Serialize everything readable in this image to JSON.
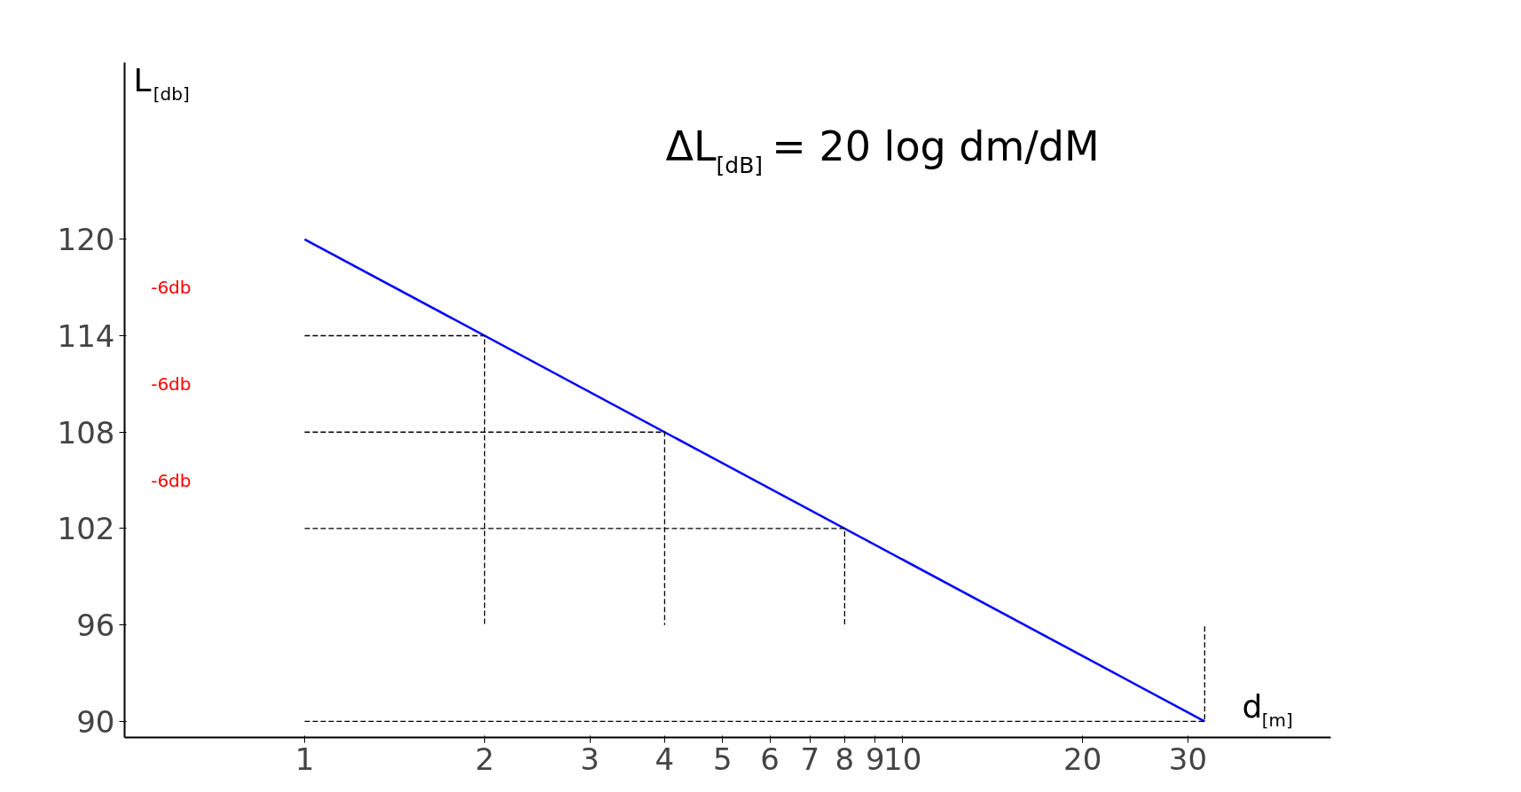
{
  "chart_data": {
    "type": "line",
    "xlabel": "d$_{[m]}$",
    "ylabel": "L$_{[db]}$",
    "log": "x",
    "xlim": [
      0.5,
      52
    ],
    "ylim": [
      89,
      131
    ],
    "xticks": [
      1,
      2,
      3,
      4,
      5,
      6,
      7,
      8,
      9,
      10,
      20,
      30
    ],
    "yticks": [
      90,
      96,
      102,
      108,
      114,
      120
    ],
    "grid": false,
    "marker": "none",
    "series": [
      {
        "color": "#0000ff",
        "x": [
          1,
          32
        ],
        "values": [
          120,
          90
        ],
        "line_style": "solid"
      },
      {
        "color": "#000000",
        "x": [
          1,
          2,
          2
        ],
        "values": [
          114,
          114,
          96
        ],
        "line_style": "dashed"
      },
      {
        "color": "#000000",
        "x": [
          1,
          4,
          4
        ],
        "values": [
          108,
          108,
          96
        ],
        "line_style": "dashed"
      },
      {
        "color": "#000000",
        "x": [
          1,
          8,
          8
        ],
        "values": [
          102,
          102,
          96
        ],
        "line_style": "dashed"
      },
      {
        "color": "#000000",
        "x": [
          1,
          32,
          32
        ],
        "values": [
          90,
          90,
          96
        ],
        "line_style": "dashed"
      }
    ],
    "annotations": [
      "-6db",
      "-6db",
      "-6db",
      "ΔL$_{[dB]}$ = 20 log dm/dM"
    ]
  }
}
